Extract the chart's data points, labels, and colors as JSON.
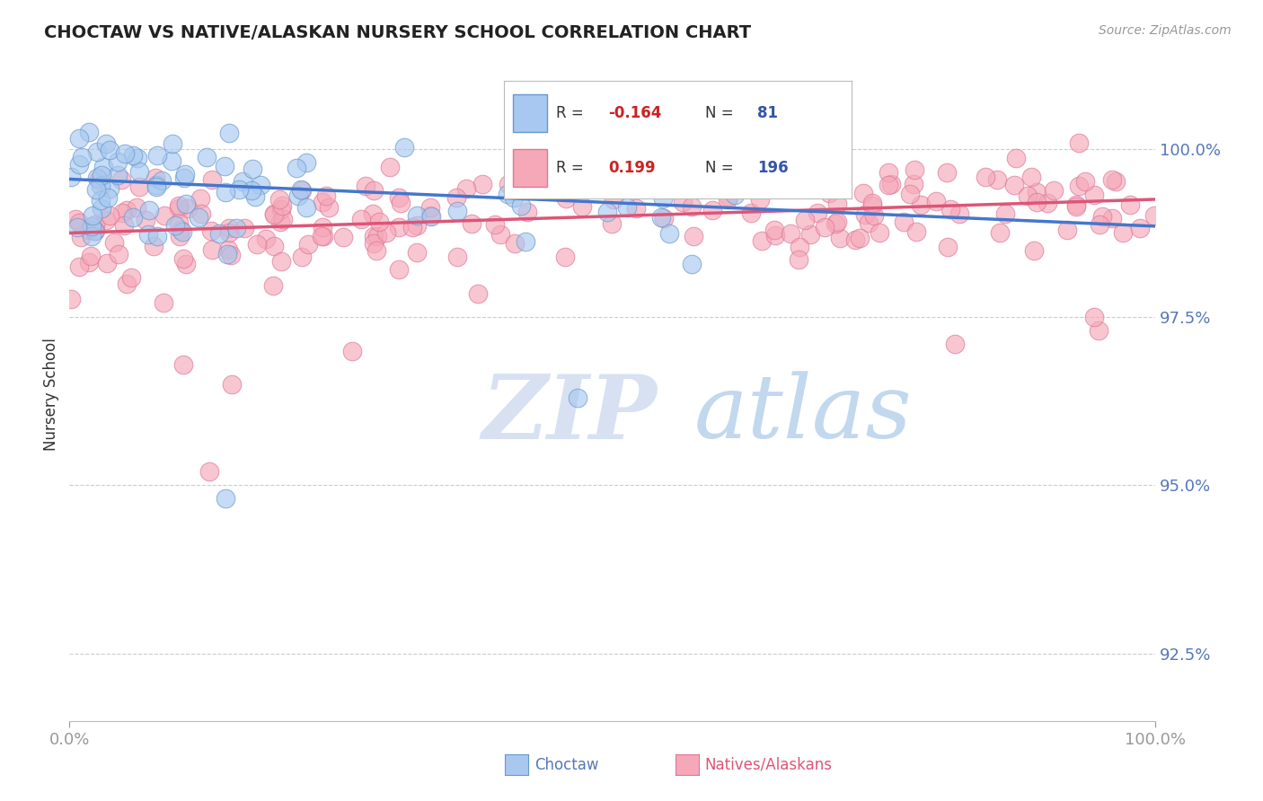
{
  "title": "CHOCTAW VS NATIVE/ALASKAN NURSERY SCHOOL CORRELATION CHART",
  "source": "Source: ZipAtlas.com",
  "ylabel": "Nursery School",
  "xmin": 0.0,
  "xmax": 100.0,
  "ymin": 91.5,
  "ymax": 101.2,
  "yticks": [
    92.5,
    95.0,
    97.5,
    100.0
  ],
  "ytick_labels": [
    "92.5%",
    "95.0%",
    "97.5%",
    "100.0%"
  ],
  "blue_R": -0.164,
  "blue_N": 81,
  "pink_R": 0.199,
  "pink_N": 196,
  "blue_color": "#A8C8F0",
  "pink_color": "#F5A8B8",
  "blue_edge_color": "#6699CC",
  "pink_edge_color": "#DD7799",
  "blue_line_color": "#4477CC",
  "pink_line_color": "#DD5577",
  "legend_label_blue": "Choctaw",
  "legend_label_pink": "Natives/Alaskans",
  "watermark_ZIP": "ZIP",
  "watermark_atlas": "atlas",
  "background_color": "#ffffff",
  "grid_color": "#cccccc",
  "tick_color": "#5577BB",
  "blue_trend_y0": 99.55,
  "blue_trend_y1": 98.85,
  "pink_trend_y0": 98.75,
  "pink_trend_y1": 99.25
}
